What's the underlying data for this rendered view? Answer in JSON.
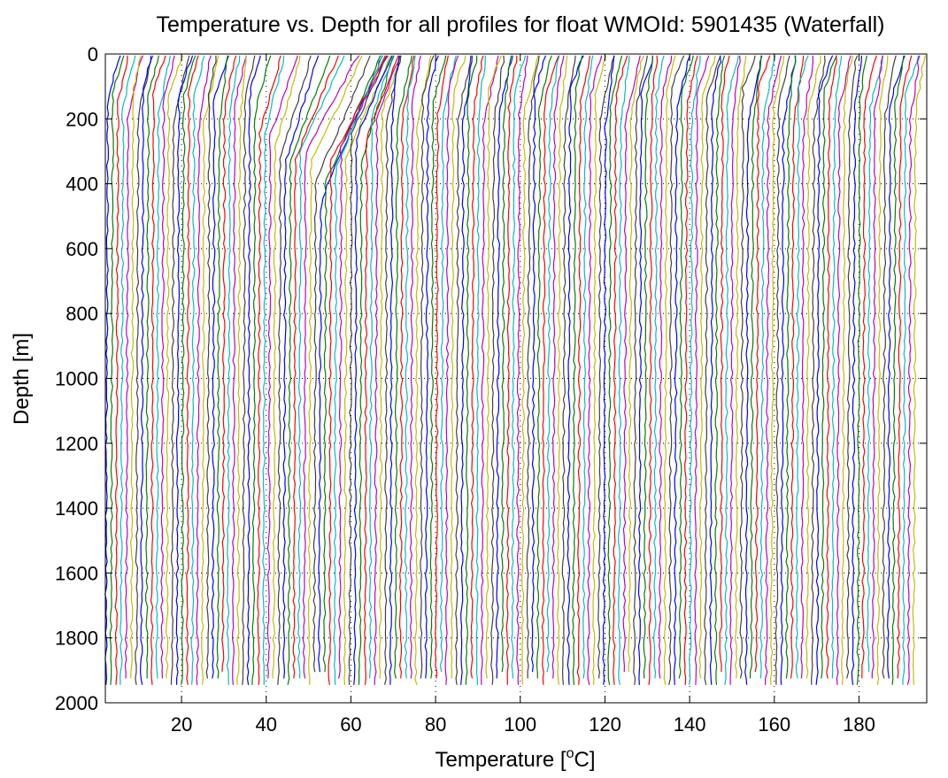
{
  "chart_data": {
    "type": "line",
    "title": "Temperature vs. Depth for all profiles for float WMOId: 5901435 (Waterfall)",
    "xlabel": "Temperature [",
    "xlabel_sup": "o",
    "xlabel_end": "C]",
    "ylabel": "Depth [m]",
    "xlim": [
      2,
      196
    ],
    "ylim": [
      0,
      2000
    ],
    "y_reversed": true,
    "x_ticks": [
      20,
      40,
      60,
      80,
      100,
      120,
      140,
      160,
      180
    ],
    "y_ticks": [
      0,
      200,
      400,
      600,
      800,
      1000,
      1200,
      1400,
      1600,
      1800,
      2000
    ],
    "grid": "dotted",
    "profile_count": 160,
    "profile_spacing_degC": 1.2,
    "series_colors": [
      "#0000ff",
      "#008000",
      "#ff0000",
      "#00bfbf",
      "#bf00bf",
      "#bfbf00",
      "#404040"
    ],
    "note_style": "waterfall: each successive profile offset to the right"
  }
}
